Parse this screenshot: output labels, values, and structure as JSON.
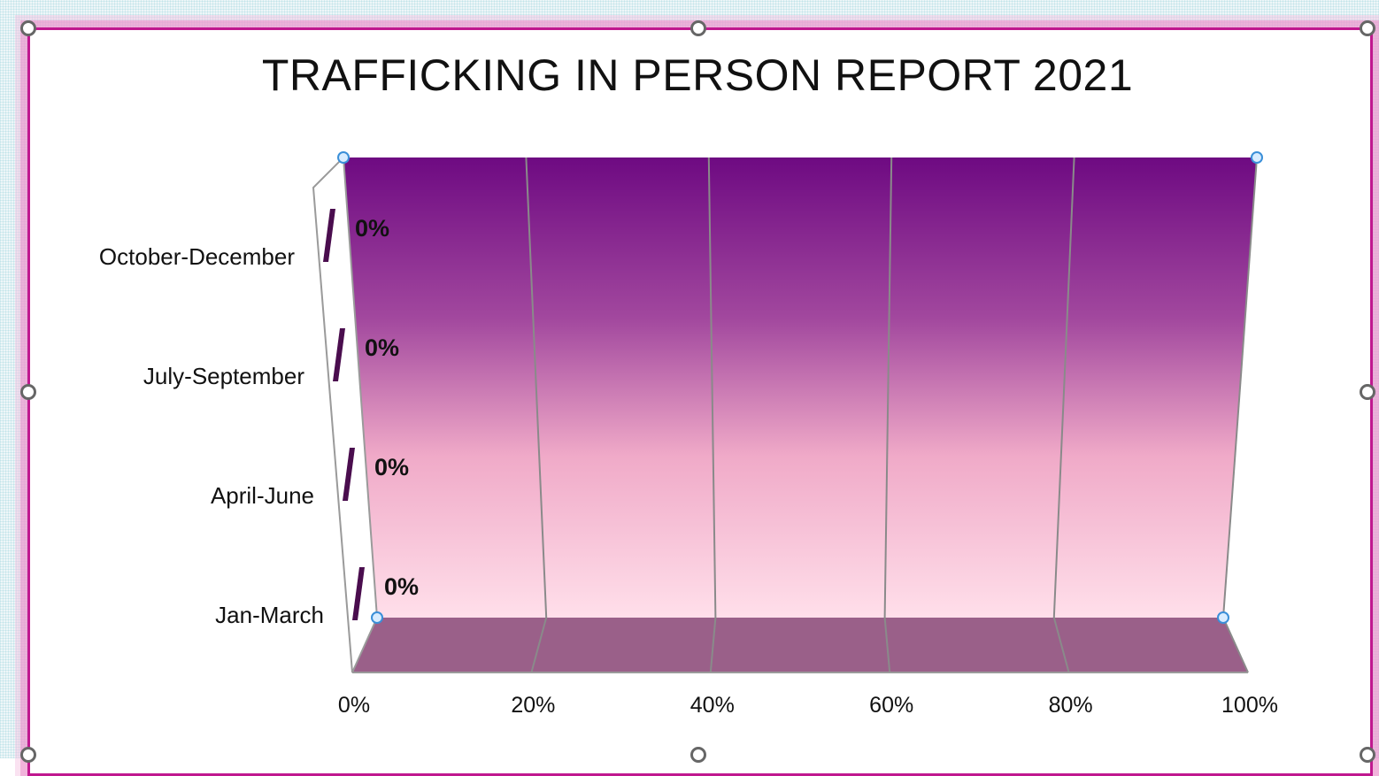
{
  "chart_data": {
    "type": "bar",
    "orientation": "horizontal",
    "style": "3d-clustered-bar",
    "title": "TRAFFICKING IN PERSON REPORT 2021",
    "categories": [
      "Jan-March",
      "April-June",
      "July-September",
      "October-December"
    ],
    "values": [
      0,
      0,
      0,
      0
    ],
    "data_labels": [
      "0%",
      "0%",
      "0%",
      "0%"
    ],
    "x_ticks": [
      "0%",
      "20%",
      "40%",
      "60%",
      "80%",
      "100%"
    ],
    "xlim": [
      0,
      1
    ],
    "grid": true,
    "legend": "none",
    "colors": {
      "bar": "#4a0d4e",
      "wall_top": "#6e0a82",
      "wall_mid": "#c878b4",
      "wall_bottom": "#ffd9e6",
      "floor": "#9a6089",
      "gridline": "#8a8a8a",
      "border": "#c0188f"
    }
  }
}
